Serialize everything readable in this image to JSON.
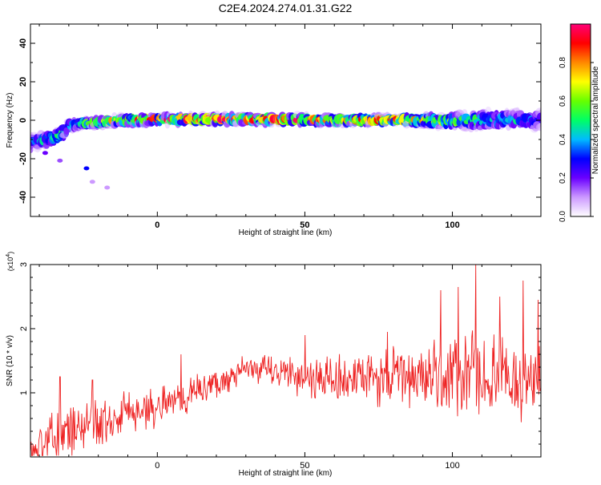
{
  "chart_data": [
    {
      "id": "spectrogram",
      "type": "heatmap",
      "title": "C2E4.2024.274.01.31.G22",
      "xlabel": "Height of straight line (km)",
      "ylabel": "Frequency (Hz)",
      "colorbar_label": "Normalized spectral amplitude",
      "xlim": [
        -43,
        130
      ],
      "ylim": [
        -50,
        50
      ],
      "xticks": [
        0,
        50,
        100
      ],
      "yticks": [
        -40,
        -20,
        0,
        20,
        40
      ],
      "colorbar_range": [
        0,
        1
      ],
      "colorbar_ticks": [
        "0.0",
        "0.2",
        "0.4",
        "0.6",
        "0.8"
      ],
      "colorbar_tick_values": [
        0.0,
        0.2,
        0.4,
        0.6,
        0.8
      ],
      "colormap": [
        "#ffffff",
        "#cc99ff",
        "#6a00ff",
        "#0000ff",
        "#00bbff",
        "#00ff66",
        "#66ff00",
        "#ffff00",
        "#ff8800",
        "#ff0000",
        "#ff0077"
      ],
      "ridge": {
        "x": [
          -43,
          -38,
          -33,
          -30,
          -25,
          -20,
          -10,
          0,
          20,
          40,
          60,
          80,
          100,
          110,
          120,
          130
        ],
        "freq_hz": [
          -12,
          -10,
          -8,
          -3,
          -1.5,
          -1,
          0,
          0.5,
          0.5,
          0.5,
          0,
          0.3,
          -0.5,
          0,
          0.5,
          0
        ],
        "amplitude": [
          0.4,
          0.45,
          0.5,
          0.5,
          0.55,
          0.65,
          0.8,
          0.9,
          0.95,
          0.95,
          0.85,
          0.85,
          0.6,
          0.55,
          0.45,
          0.4
        ],
        "spread_hz": [
          6,
          5,
          5,
          4,
          3,
          3,
          3,
          3,
          3,
          3,
          3,
          3,
          5,
          6,
          6,
          6
        ]
      },
      "outliers": [
        {
          "x": -38,
          "freq_hz": -17,
          "amplitude": 0.2
        },
        {
          "x": -33,
          "freq_hz": -21,
          "amplitude": 0.15
        },
        {
          "x": -24,
          "freq_hz": -25,
          "amplitude": 0.3
        },
        {
          "x": -22,
          "freq_hz": -32,
          "amplitude": 0.1
        },
        {
          "x": -17,
          "freq_hz": -35,
          "amplitude": 0.1
        }
      ]
    },
    {
      "id": "snr",
      "type": "line",
      "xlabel": "Height of straight line (km)",
      "ylabel": "SNR (10 * v/v)",
      "multiplier_label": "(x10",
      "multiplier_exp": "4",
      "multiplier_close": ")",
      "xlim": [
        -43,
        130
      ],
      "ylim": [
        0,
        3
      ],
      "xticks": [
        0,
        50,
        100
      ],
      "yticks": [
        1,
        2,
        3
      ],
      "color": "#ee2222",
      "trend": {
        "x": [
          -43,
          -35,
          -25,
          -15,
          0,
          10,
          20,
          30,
          40,
          50,
          60,
          70,
          80,
          90,
          100,
          110,
          120,
          130
        ],
        "y": [
          0.05,
          0.35,
          0.45,
          0.6,
          0.8,
          0.95,
          1.15,
          1.35,
          1.35,
          1.25,
          1.2,
          1.2,
          1.25,
          1.25,
          1.25,
          1.25,
          1.2,
          1.2
        ]
      },
      "noise_amplitude": {
        "x": [
          -43,
          -20,
          0,
          30,
          60,
          90,
          100,
          130
        ],
        "y": [
          0.4,
          0.5,
          0.35,
          0.25,
          0.45,
          0.6,
          0.8,
          0.7
        ]
      },
      "peaks": [
        {
          "x": -33,
          "y": 1.25
        },
        {
          "x": -22,
          "y": 1.2
        },
        {
          "x": 8,
          "y": 1.6
        },
        {
          "x": 50,
          "y": 1.9
        },
        {
          "x": 78,
          "y": 1.95
        },
        {
          "x": 96,
          "y": 2.6
        },
        {
          "x": 102,
          "y": 2.65
        },
        {
          "x": 108,
          "y": 3.0
        },
        {
          "x": 116,
          "y": 2.5
        },
        {
          "x": 124,
          "y": 2.75
        },
        {
          "x": 129,
          "y": 2.45
        }
      ]
    }
  ]
}
